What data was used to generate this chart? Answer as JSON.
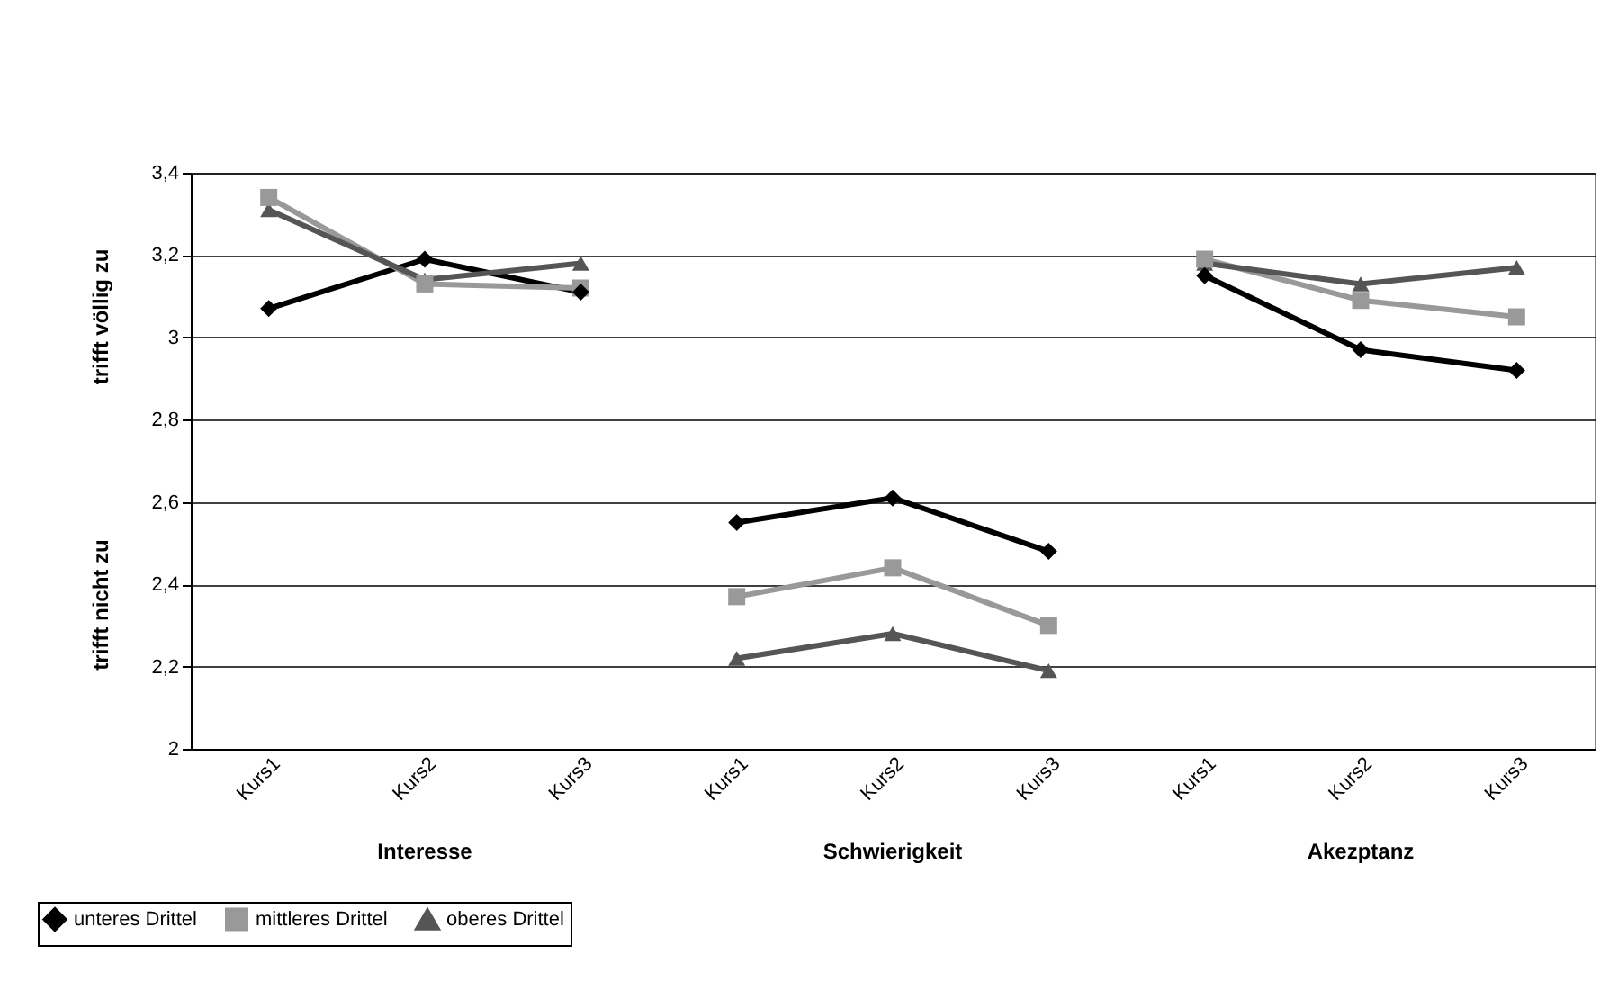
{
  "chart_data": {
    "type": "line",
    "categories": [
      "Kurs1",
      "Kurs2",
      "Kurs3",
      "Kurs1",
      "Kurs2",
      "Kurs3",
      "Kurs1",
      "Kurs2",
      "Kurs3"
    ],
    "series": [
      {
        "name": "unteres Drittel",
        "color": "#000000",
        "marker": "diamond",
        "values": [
          3.07,
          3.19,
          3.11,
          2.55,
          2.61,
          2.48,
          3.15,
          2.97,
          2.92
        ]
      },
      {
        "name": "mittleres Drittel",
        "color": "#999999",
        "marker": "square",
        "values": [
          3.34,
          3.13,
          3.12,
          2.37,
          2.44,
          2.3,
          3.19,
          3.09,
          3.05
        ]
      },
      {
        "name": "oberes Drittel",
        "color": "#555555",
        "marker": "triangle",
        "values": [
          3.31,
          3.14,
          3.18,
          2.22,
          2.28,
          2.19,
          3.18,
          3.13,
          3.17
        ]
      }
    ],
    "ylim": [
      2,
      3.4
    ],
    "yticks": [
      2,
      {
        "value": 2.2,
        "label": "2,2"
      },
      {
        "value": 2.4,
        "label": "2,4"
      },
      {
        "value": 2.6,
        "label": "2,6"
      },
      {
        "value": 2.8,
        "label": "2,8"
      },
      3,
      {
        "value": 3.2,
        "label": "3,2"
      },
      {
        "value": 3.4,
        "label": "3,4"
      }
    ],
    "grid": "y",
    "legend": "bottom left",
    "annotations": [
      "Interesse",
      "Schwierigkeit",
      "Akezptanz",
      "trifft völlig zu",
      "trifft nicht zu"
    ]
  }
}
